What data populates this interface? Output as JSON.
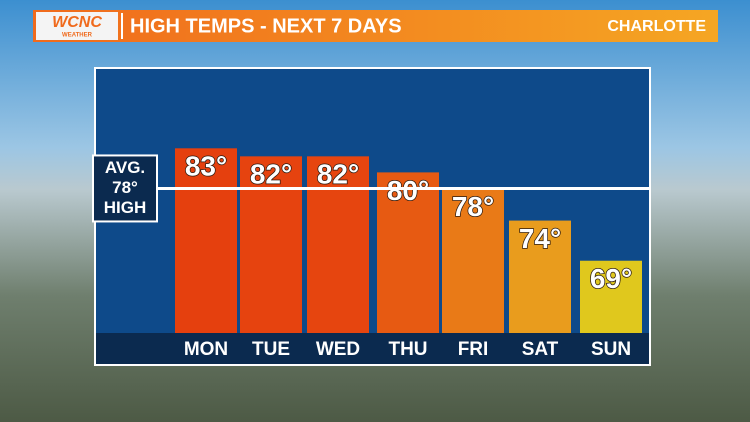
{
  "chart_data": {
    "type": "bar",
    "title": "HIGH TEMPS - NEXT 7 DAYS",
    "location": "CHARLOTTE",
    "logo": "WCNC",
    "logo_sub": "WEATHER",
    "categories": [
      "MON",
      "TUE",
      "WED",
      "THU",
      "FRI",
      "SAT",
      "SUN"
    ],
    "values": [
      83,
      82,
      82,
      80,
      78,
      74,
      69
    ],
    "value_labels": [
      "83°",
      "82°",
      "82°",
      "80°",
      "78°",
      "74°",
      "69°"
    ],
    "colors": [
      "#e5400e",
      "#e6430f",
      "#e6450f",
      "#e75a12",
      "#e97a17",
      "#e99c1d",
      "#e0c81d"
    ],
    "average": {
      "value": 78,
      "label_lines": [
        "AVG.",
        "78°",
        "HIGH"
      ]
    },
    "ylim": [
      60,
      93
    ]
  }
}
